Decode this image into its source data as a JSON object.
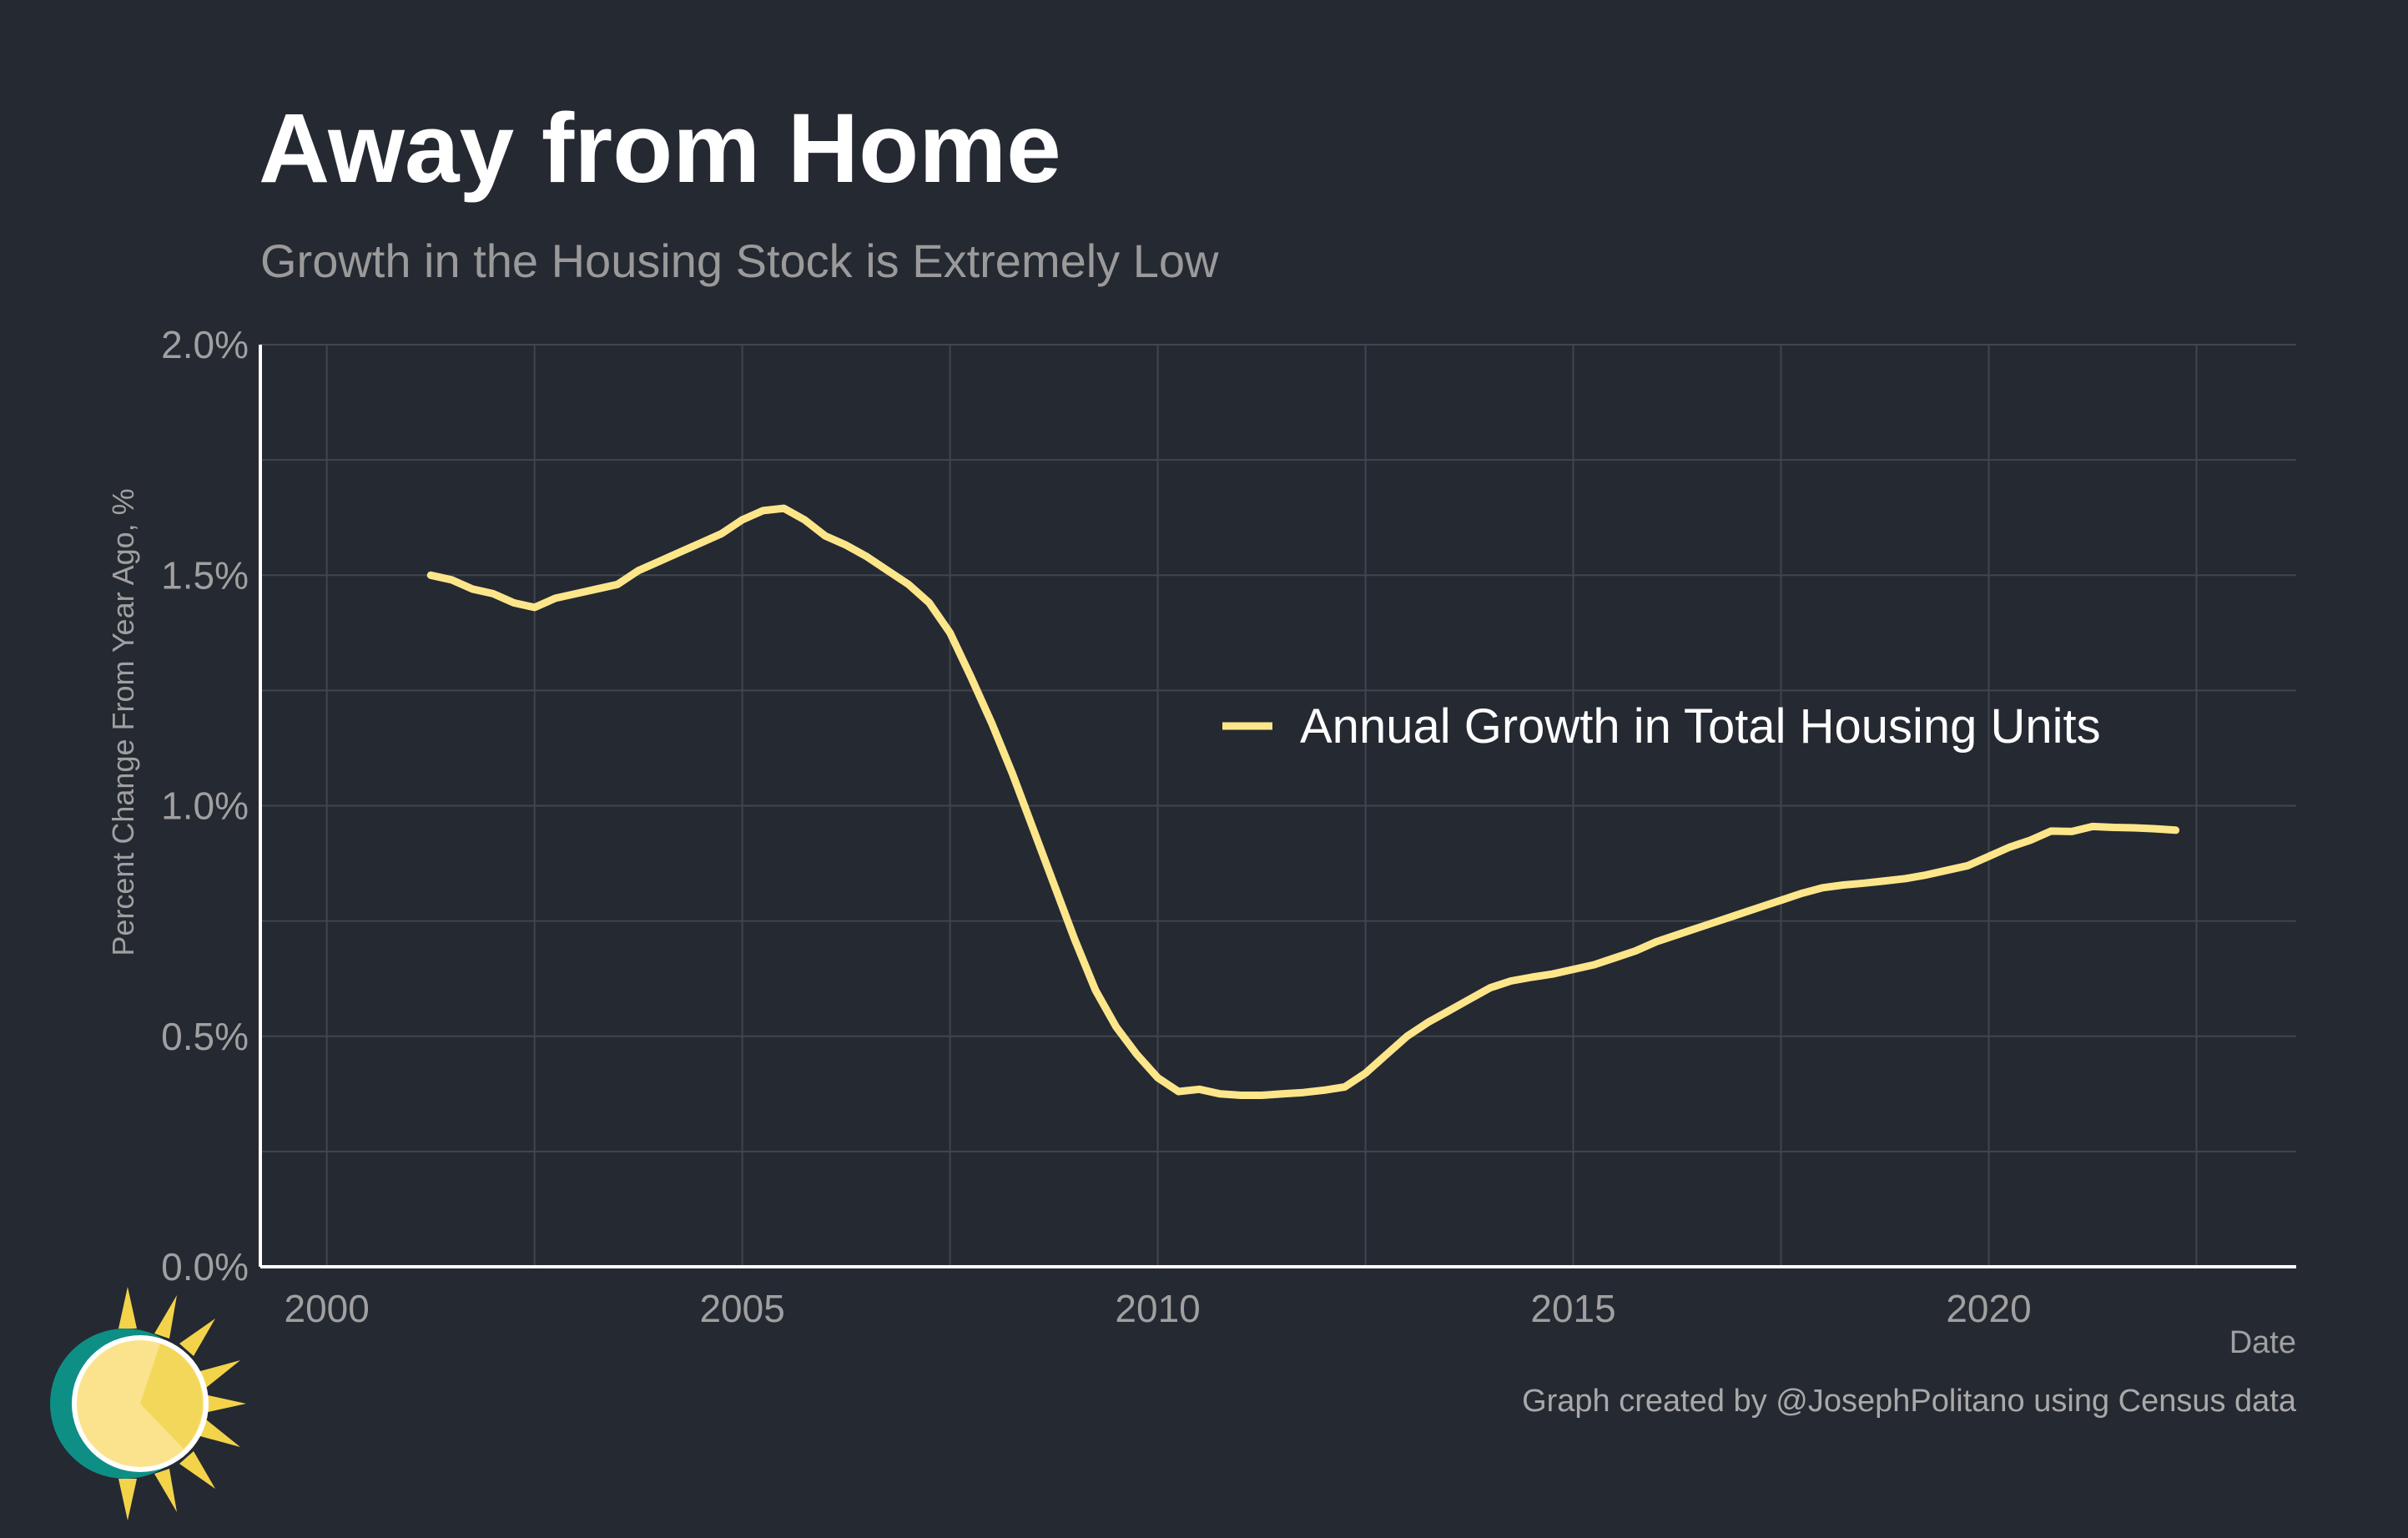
{
  "title": "Away from Home",
  "subtitle": "Growth in the Housing Stock is Extremely Low",
  "caption": "Graph created by @JosephPolitano using Census data",
  "colors": {
    "background": "#252932",
    "line": "#FDE68A",
    "grid": "#41454e",
    "axis": "#ffffff",
    "tick_text": "#a0a0a0"
  },
  "chart_data": {
    "type": "line",
    "xlabel": "Date",
    "ylabel": "Percent Change From Year Ago, %",
    "xlim": [
      1999.2,
      2023.7
    ],
    "ylim": [
      0,
      2.0
    ],
    "x_ticks": [
      2000,
      2005,
      2010,
      2015,
      2020
    ],
    "x_tick_labels": [
      "2000",
      "2005",
      "2010",
      "2015",
      "2020"
    ],
    "y_ticks": [
      0,
      0.5,
      1.0,
      1.5,
      2.0
    ],
    "y_tick_labels": [
      "0.0%",
      "0.5%",
      "1.0%",
      "1.5%",
      "2.0%"
    ],
    "grid": true,
    "legend_position": "center-right",
    "series": [
      {
        "name": "Annual Growth in Total Housing Units",
        "color": "#FDE68A",
        "x": [
          2001.25,
          2001.5,
          2001.75,
          2002.0,
          2002.25,
          2002.5,
          2002.75,
          2003.0,
          2003.25,
          2003.5,
          2003.75,
          2004.0,
          2004.25,
          2004.5,
          2004.75,
          2005.0,
          2005.25,
          2005.5,
          2005.75,
          2006.0,
          2006.25,
          2006.5,
          2006.75,
          2007.0,
          2007.25,
          2007.5,
          2007.75,
          2008.0,
          2008.25,
          2008.5,
          2008.75,
          2009.0,
          2009.25,
          2009.5,
          2009.75,
          2010.0,
          2010.25,
          2010.5,
          2010.75,
          2011.0,
          2011.25,
          2011.5,
          2011.75,
          2012.0,
          2012.25,
          2012.5,
          2012.75,
          2013.0,
          2013.25,
          2013.5,
          2013.75,
          2014.0,
          2014.25,
          2014.5,
          2014.75,
          2015.0,
          2015.25,
          2015.5,
          2015.75,
          2016.0,
          2016.25,
          2016.5,
          2016.75,
          2017.0,
          2017.25,
          2017.5,
          2017.75,
          2018.0,
          2018.25,
          2018.5,
          2018.75,
          2019.0,
          2019.25,
          2019.5,
          2019.75,
          2020.0,
          2020.25,
          2020.5,
          2020.75,
          2021.0,
          2021.25,
          2021.5,
          2021.75,
          2022.0,
          2022.25
        ],
        "values": [
          1.5,
          1.49,
          1.47,
          1.46,
          1.44,
          1.43,
          1.45,
          1.46,
          1.47,
          1.48,
          1.51,
          1.53,
          1.55,
          1.57,
          1.59,
          1.62,
          1.64,
          1.645,
          1.62,
          1.585,
          1.565,
          1.54,
          1.51,
          1.48,
          1.44,
          1.375,
          1.28,
          1.18,
          1.07,
          0.95,
          0.83,
          0.71,
          0.6,
          0.52,
          0.46,
          0.41,
          0.38,
          0.385,
          0.375,
          0.372,
          0.372,
          0.375,
          0.378,
          0.383,
          0.39,
          0.42,
          0.46,
          0.5,
          0.53,
          0.555,
          0.58,
          0.605,
          0.62,
          0.628,
          0.635,
          0.645,
          0.655,
          0.67,
          0.685,
          0.705,
          0.72,
          0.735,
          0.75,
          0.765,
          0.78,
          0.795,
          0.81,
          0.822,
          0.828,
          0.832,
          0.837,
          0.842,
          0.85,
          0.86,
          0.87,
          0.89,
          0.91,
          0.925,
          0.945,
          0.944,
          0.955,
          0.953,
          0.952,
          0.95,
          0.947
        ]
      }
    ]
  }
}
